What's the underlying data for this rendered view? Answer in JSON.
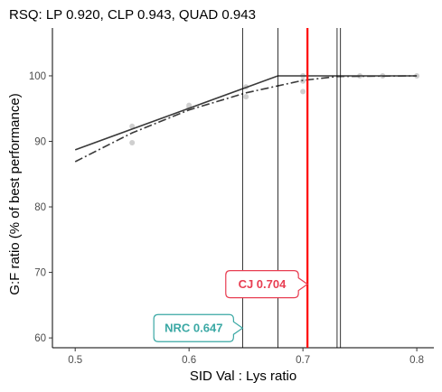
{
  "chart_data": {
    "type": "scatter",
    "title": "RSQ: LP 0.920, CLP 0.943, QUAD 0.943",
    "xlabel": "SID Val : Lys ratio",
    "ylabel": "G:F ratio (% of best performance)",
    "xlim": [
      0.48,
      0.815
    ],
    "ylim": [
      58.5,
      107.3
    ],
    "x_ticks": [
      "0.5",
      "0.6",
      "0.7",
      "0.8"
    ],
    "y_ticks": [
      "60",
      "70",
      "80",
      "90",
      "100"
    ],
    "grid": false,
    "points": [
      {
        "x": 0.55,
        "y": 92.3
      },
      {
        "x": 0.55,
        "y": 89.8
      },
      {
        "x": 0.6,
        "y": 95.2
      },
      {
        "x": 0.6,
        "y": 95.5
      },
      {
        "x": 0.65,
        "y": 96.8
      },
      {
        "x": 0.65,
        "y": 98.3
      },
      {
        "x": 0.7,
        "y": 97.6
      },
      {
        "x": 0.7,
        "y": 99.2
      },
      {
        "x": 0.7,
        "y": 100.0
      },
      {
        "x": 0.75,
        "y": 100.0
      },
      {
        "x": 0.77,
        "y": 100.0
      },
      {
        "x": 0.8,
        "y": 100.0
      }
    ],
    "point_color": "#cfcfcf",
    "series": [
      {
        "style": "solid",
        "color": "#3a3a3a",
        "points": [
          [
            0.5,
            88.7
          ],
          [
            0.678,
            100.0
          ],
          [
            0.8,
            100.0
          ]
        ]
      },
      {
        "style": "longdash",
        "color": "#3a3a3a",
        "points": [
          [
            0.5,
            86.9
          ],
          [
            0.55,
            91.3
          ],
          [
            0.6,
            94.8
          ],
          [
            0.65,
            97.4
          ],
          [
            0.7,
            99.3
          ],
          [
            0.73,
            99.9
          ],
          [
            0.8,
            100.0
          ]
        ]
      }
    ],
    "vlines": [
      {
        "x": 0.647,
        "color": "#000000",
        "width": 0.8
      },
      {
        "x": 0.678,
        "color": "#000000",
        "width": 0.8
      },
      {
        "x": 0.73,
        "color": "#000000",
        "width": 0.8
      },
      {
        "x": 0.733,
        "color": "#000000",
        "width": 0.8
      },
      {
        "x": 0.704,
        "color": "#ff0000",
        "width": 2.2
      }
    ],
    "annotations": [
      {
        "text": "NRC 0.647",
        "x": 0.647,
        "y": 61.5,
        "side": "left",
        "color": "#3aa8a4"
      },
      {
        "text": "CJ 0.704",
        "x": 0.704,
        "y": 68.2,
        "side": "left",
        "color": "#e83e52"
      }
    ]
  }
}
